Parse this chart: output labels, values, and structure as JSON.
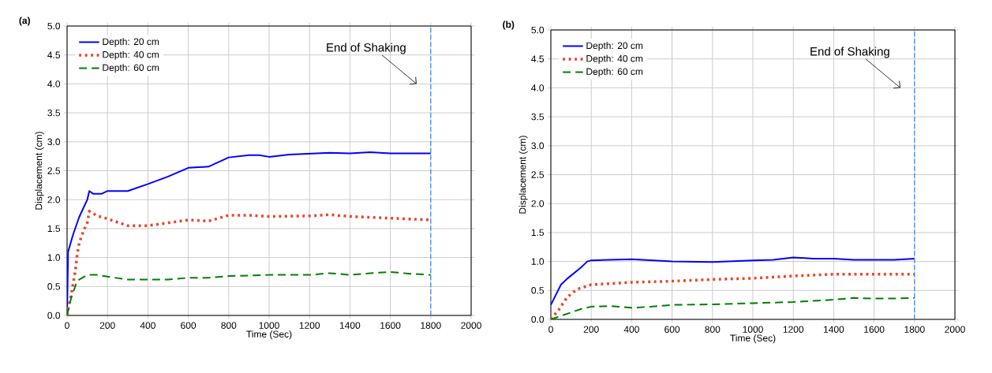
{
  "chart_data": [
    {
      "type": "line",
      "title": "(a)",
      "xlabel": "Time (Sec)",
      "ylabel": "Displacement (cm)",
      "xlim": [
        0,
        2000
      ],
      "xticks": [
        0,
        200,
        400,
        600,
        800,
        1000,
        1200,
        1400,
        1600,
        1800,
        2000
      ],
      "ylim": [
        0,
        5
      ],
      "yticks": [
        {
          "value": 0,
          "label": "0.0"
        },
        0.5,
        {
          "value": 1,
          "label": "1.0"
        },
        1.5,
        {
          "value": 2,
          "label": "2.0"
        },
        2.5,
        {
          "value": 3,
          "label": "3.0"
        },
        3.5,
        {
          "value": 4,
          "label": "4.0"
        },
        4.5,
        {
          "value": 5,
          "label": "5.0"
        }
      ],
      "grid": true,
      "legend": "top left",
      "series": [
        {
          "name": "Depth: 20 cm",
          "color": "#0000ff",
          "line_style": "solid",
          "x": [
            0,
            5,
            30,
            60,
            100,
            110,
            130,
            170,
            200,
            300,
            400,
            500,
            600,
            700,
            800,
            900,
            950,
            1000,
            1100,
            1300,
            1400,
            1500,
            1600,
            1800
          ],
          "values": [
            0,
            1.1,
            1.4,
            1.7,
            2.0,
            2.15,
            2.1,
            2.1,
            2.15,
            2.15,
            2.27,
            2.4,
            2.55,
            2.57,
            2.73,
            2.77,
            2.77,
            2.74,
            2.78,
            2.81,
            2.8,
            2.82,
            2.8,
            2.8
          ]
        },
        {
          "name": "Depth: 40 cm",
          "color": "#e8472a",
          "line_style": "dotted",
          "x": [
            0,
            10,
            20,
            30,
            40,
            50,
            60,
            80,
            100,
            110,
            150,
            200,
            300,
            400,
            500,
            600,
            700,
            800,
            900,
            1000,
            1200,
            1300,
            1400,
            1600,
            1800
          ],
          "values": [
            0,
            0.2,
            0.35,
            0.55,
            0.75,
            1.05,
            1.25,
            1.45,
            1.6,
            1.8,
            1.72,
            1.67,
            1.55,
            1.55,
            1.6,
            1.65,
            1.63,
            1.73,
            1.73,
            1.71,
            1.72,
            1.74,
            1.71,
            1.68,
            1.65
          ]
        },
        {
          "name": "Depth: 60 cm",
          "color": "#008000",
          "line_style": "dashed",
          "x": [
            0,
            20,
            50,
            100,
            150,
            200,
            300,
            500,
            600,
            700,
            800,
            1000,
            1200,
            1300,
            1400,
            1500,
            1600,
            1700,
            1800
          ],
          "values": [
            0,
            0.3,
            0.6,
            0.7,
            0.7,
            0.67,
            0.62,
            0.62,
            0.65,
            0.65,
            0.68,
            0.7,
            0.7,
            0.73,
            0.7,
            0.73,
            0.75,
            0.72,
            0.7
          ]
        }
      ],
      "ref_lines": [
        {
          "axis": "x",
          "value": 1800,
          "color": "#1e90ff",
          "line_style": "dashed"
        }
      ],
      "annotations": [
        "End of Shaking"
      ]
    },
    {
      "type": "line",
      "title": "(b)",
      "xlabel": "Time (Sec)",
      "ylabel": "Displacement (cm)",
      "xlim": [
        0,
        2000
      ],
      "xticks": [
        0,
        200,
        400,
        600,
        800,
        1000,
        1200,
        1400,
        1600,
        1800,
        2000
      ],
      "ylim": [
        0,
        5
      ],
      "yticks": [
        {
          "value": 0,
          "label": "0.0"
        },
        0.5,
        {
          "value": 1,
          "label": "1.0"
        },
        1.5,
        {
          "value": 2,
          "label": "2.0"
        },
        2.5,
        {
          "value": 3,
          "label": "3.0"
        },
        3.5,
        {
          "value": 4,
          "label": "4.0"
        },
        4.5,
        {
          "value": 5,
          "label": "5.0"
        }
      ],
      "grid": true,
      "legend": "top left",
      "series": [
        {
          "name": "Depth: 20 cm",
          "color": "#0000ff",
          "line_style": "solid",
          "x": [
            0,
            50,
            80,
            150,
            180,
            200,
            400,
            600,
            800,
            1000,
            1100,
            1200,
            1300,
            1400,
            1500,
            1700,
            1800
          ],
          "values": [
            0.25,
            0.6,
            0.7,
            0.9,
            1.0,
            1.02,
            1.04,
            1.0,
            0.99,
            1.02,
            1.03,
            1.07,
            1.05,
            1.05,
            1.03,
            1.03,
            1.05
          ]
        },
        {
          "name": "Depth: 40 cm",
          "color": "#e8472a",
          "line_style": "dotted",
          "x": [
            0,
            40,
            80,
            130,
            200,
            300,
            400,
            600,
            800,
            1000,
            1200,
            1400,
            1600,
            1800
          ],
          "values": [
            0,
            0.17,
            0.38,
            0.52,
            0.6,
            0.62,
            0.64,
            0.66,
            0.69,
            0.71,
            0.75,
            0.78,
            0.78,
            0.78
          ]
        },
        {
          "name": "Depth: 60 cm",
          "color": "#008000",
          "line_style": "dashed",
          "x": [
            0,
            50,
            100,
            150,
            200,
            300,
            400,
            500,
            600,
            800,
            1000,
            1200,
            1300,
            1400,
            1500,
            1600,
            1700,
            1800
          ],
          "values": [
            0,
            0.06,
            0.12,
            0.18,
            0.22,
            0.23,
            0.2,
            0.22,
            0.25,
            0.26,
            0.28,
            0.3,
            0.32,
            0.34,
            0.37,
            0.36,
            0.36,
            0.37
          ]
        }
      ],
      "ref_lines": [
        {
          "axis": "x",
          "value": 1800,
          "color": "#1e90ff",
          "line_style": "dashed"
        }
      ],
      "annotations": [
        "End of Shaking"
      ]
    }
  ]
}
